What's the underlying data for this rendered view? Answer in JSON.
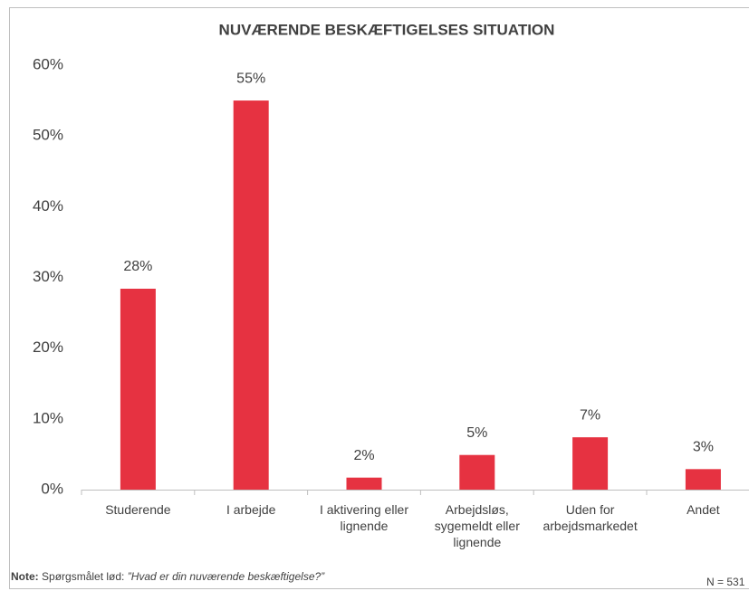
{
  "chart_data": {
    "type": "bar",
    "title": "NUVÆRENDE BESKÆFTIGELSES SITUATION",
    "categories": [
      "Studerende",
      "I arbejde",
      "I aktivering eller lignende",
      "Arbejdsløs, sygemeldt eller lignende",
      "Uden for arbejdsmarkedet",
      "Andet"
    ],
    "values": [
      28.4,
      55,
      1.7,
      4.9,
      7.4,
      2.9
    ],
    "value_labels": [
      "28%",
      "55%",
      "2%",
      "5%",
      "7%",
      "3%"
    ],
    "color": "#e63241",
    "ylim": [
      0,
      60
    ],
    "yticks": [
      {
        "value": 0,
        "label": "0%"
      },
      {
        "value": 10,
        "label": "10%"
      },
      {
        "value": 20,
        "label": "20%"
      },
      {
        "value": 30,
        "label": "30%"
      },
      {
        "value": 40,
        "label": "40%"
      },
      {
        "value": 50,
        "label": "50%"
      },
      {
        "value": 60,
        "label": "60%"
      }
    ],
    "grid": false
  },
  "note": {
    "label": "Note:",
    "text": "Spørgsmålet lød:",
    "quote": "”Hvad er din nuværende beskæftigelse?”"
  },
  "sample": "N = 531"
}
